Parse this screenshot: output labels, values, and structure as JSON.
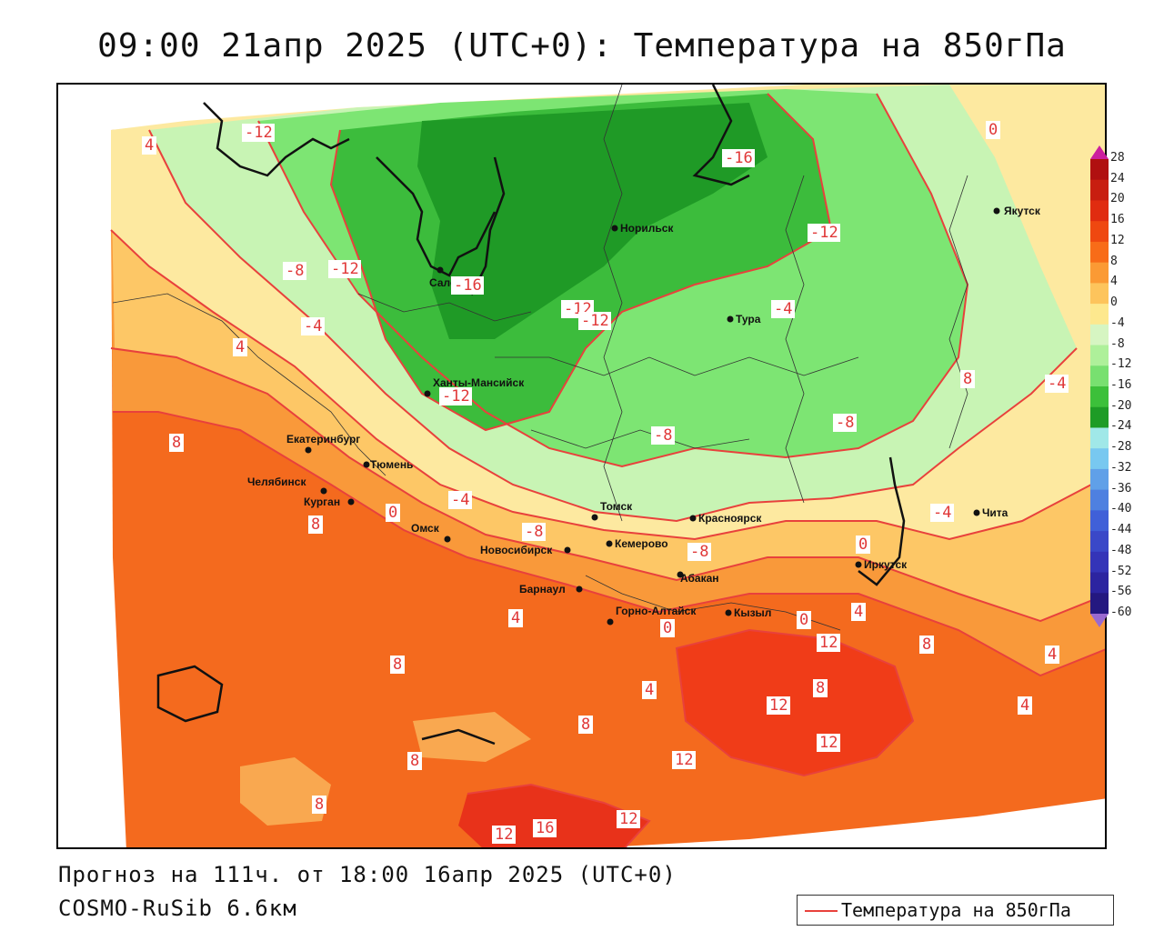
{
  "title": "09:00 21апр 2025 (UTC+0): Температура на 850гПа",
  "forecast_line": "Прогноз на 111ч. от 18:00 16апр 2025 (UTC+0)",
  "model_line": "COSMO-RuSib 6.6км",
  "legend": {
    "series_label": "Температура на 850гПа",
    "series_color": "#e8413c",
    "scale_values": [
      "28",
      "24",
      "20",
      "16",
      "12",
      "8",
      "4",
      "0",
      "-4",
      "-8",
      "-12",
      "-16",
      "-20",
      "-24",
      "-28",
      "-32",
      "-36",
      "-40",
      "-44",
      "-48",
      "-52",
      "-56",
      "-60"
    ],
    "scale_colors": [
      "#b01010",
      "#c81e10",
      "#e02c10",
      "#ef4810",
      "#f86c18",
      "#fb9a34",
      "#fdc45c",
      "#fde88e",
      "#d6f5c2",
      "#aef09a",
      "#78e070",
      "#3cc03a",
      "#1e9c26",
      "#a0e8e8",
      "#78c8f0",
      "#60a0e8",
      "#4e80e0",
      "#4060d8",
      "#3a48c8",
      "#3434b8",
      "#2c24a0",
      "#241880"
    ]
  },
  "cities": [
    {
      "name": "Якутск"
    },
    {
      "name": "Норильск"
    },
    {
      "name": "Салехард"
    },
    {
      "name": "Тура"
    },
    {
      "name": "Ханты-Мансийск"
    },
    {
      "name": "Екатеринбург"
    },
    {
      "name": "Тюмень"
    },
    {
      "name": "Челябинск"
    },
    {
      "name": "Курган"
    },
    {
      "name": "Омск"
    },
    {
      "name": "Новосибирск"
    },
    {
      "name": "Томск"
    },
    {
      "name": "Кемерово"
    },
    {
      "name": "Красноярск"
    },
    {
      "name": "Абакан"
    },
    {
      "name": "Барнаул"
    },
    {
      "name": "Горно-Алтайск"
    },
    {
      "name": "Кызыл"
    },
    {
      "name": "Иркутск"
    },
    {
      "name": "Чита"
    }
  ],
  "isotherm_labels": [
    {
      "text": "-12"
    },
    {
      "text": "4"
    },
    {
      "text": "-16"
    },
    {
      "text": "-12"
    },
    {
      "text": "0"
    },
    {
      "text": "-8"
    },
    {
      "text": "-12"
    },
    {
      "text": "-16"
    },
    {
      "text": "-12"
    },
    {
      "text": "-12"
    },
    {
      "text": "-4"
    },
    {
      "text": "4"
    },
    {
      "text": "-4"
    },
    {
      "text": "-12"
    },
    {
      "text": "8"
    },
    {
      "text": "-4"
    },
    {
      "text": "-8"
    },
    {
      "text": "-8"
    },
    {
      "text": "8"
    },
    {
      "text": "0"
    },
    {
      "text": "-4"
    },
    {
      "text": "-8"
    },
    {
      "text": "-4"
    },
    {
      "text": "-8"
    },
    {
      "text": "0"
    },
    {
      "text": "4"
    },
    {
      "text": "4"
    },
    {
      "text": "0"
    },
    {
      "text": "0"
    },
    {
      "text": "4"
    },
    {
      "text": "8"
    },
    {
      "text": "12"
    },
    {
      "text": "8"
    },
    {
      "text": "8"
    },
    {
      "text": "4"
    },
    {
      "text": "12"
    },
    {
      "text": "8"
    },
    {
      "text": "12"
    },
    {
      "text": "4"
    },
    {
      "text": "8"
    },
    {
      "text": "8"
    },
    {
      "text": "8"
    },
    {
      "text": "12"
    },
    {
      "text": "12"
    },
    {
      "text": "16"
    },
    {
      "text": "12"
    }
  ]
}
